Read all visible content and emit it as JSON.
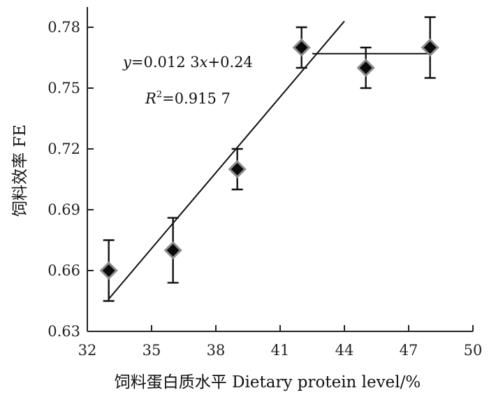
{
  "chart_data": {
    "type": "scatter",
    "xlabel": "饲料蛋白质水平 Dietary protein level/%",
    "ylabel": "饲料效率 FE",
    "xlim": [
      32,
      50
    ],
    "ylim": [
      0.63,
      0.79
    ],
    "x_ticks": [
      "32",
      "35",
      "38",
      "41",
      "44",
      "47",
      "50"
    ],
    "y_ticks": [
      "0.63",
      "0.66",
      "0.69",
      "0.72",
      "0.75",
      "0.78"
    ],
    "grid": false,
    "points": [
      {
        "x": 33,
        "y": 0.66,
        "err_low": 0.645,
        "err_high": 0.675
      },
      {
        "x": 36,
        "y": 0.67,
        "err_low": 0.654,
        "err_high": 0.686
      },
      {
        "x": 39,
        "y": 0.71,
        "err_low": 0.7,
        "err_high": 0.72
      },
      {
        "x": 42,
        "y": 0.77,
        "err_low": 0.76,
        "err_high": 0.78
      },
      {
        "x": 45,
        "y": 0.76,
        "err_low": 0.75,
        "err_high": 0.77
      },
      {
        "x": 48,
        "y": 0.77,
        "err_low": 0.755,
        "err_high": 0.785
      }
    ],
    "regression_line": {
      "x": [
        33,
        44
      ],
      "y": [
        0.646,
        0.783
      ]
    },
    "plateau_line": {
      "x": [
        42.5,
        48
      ],
      "y": [
        0.767,
        0.767
      ]
    },
    "equation": {
      "y_var": "y",
      "eq_part1": "=0.012 3",
      "x_var": "x",
      "eq_part2": "+0.24",
      "r_var": "R",
      "r_sup": "2",
      "r_value": "=0.915 7"
    }
  },
  "colors": {
    "axis": "#222222",
    "marker_fill": "#0a0a0a",
    "marker_stroke": "#8c8c8c",
    "line": "#111111"
  }
}
